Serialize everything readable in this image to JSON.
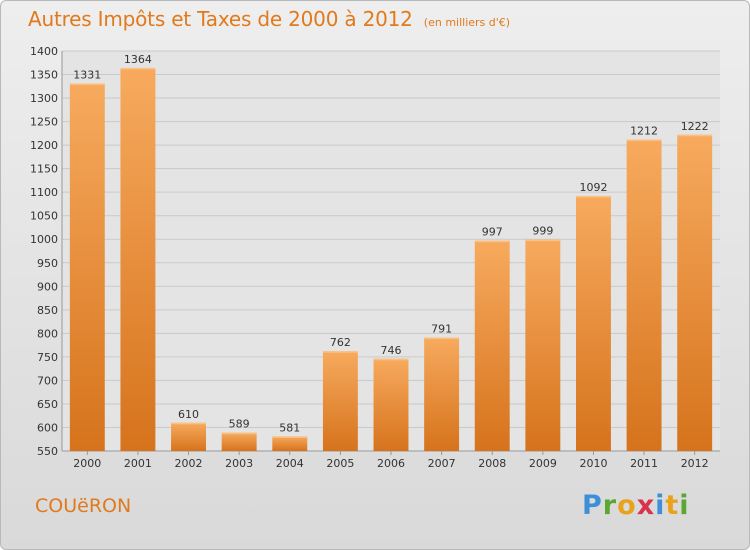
{
  "header": {
    "title": "Autres Impôts et Taxes de 2000 à 2012",
    "unit": "(en milliers d'€)"
  },
  "footer": {
    "city": "COUëRON",
    "logo": "Proxiti"
  },
  "colors": {
    "bar": "#f0913a",
    "bar_light": "#f7aa5e",
    "bar_dark": "#d6731c",
    "accent": "#e07a1c",
    "grid": "#c9c9c9"
  },
  "chart_data": {
    "type": "bar",
    "title": "Autres Impôts et Taxes de 2000 à 2012",
    "subtitle": "(en milliers d'€)",
    "categories": [
      "2000",
      "2001",
      "2002",
      "2003",
      "2004",
      "2005",
      "2006",
      "2007",
      "2008",
      "2009",
      "2010",
      "2011",
      "2012"
    ],
    "values": [
      1331,
      1364,
      610,
      589,
      581,
      762,
      746,
      791,
      997,
      999,
      1092,
      1212,
      1222
    ],
    "data_labels": [
      "1331",
      "1364",
      "610",
      "589",
      "581",
      "762",
      "746",
      "791",
      "997",
      "999",
      "1092",
      "1212",
      "1222"
    ],
    "yticks": [
      "550",
      "600",
      "650",
      "700",
      "750",
      "800",
      "850",
      "900",
      "950",
      "1000",
      "1050",
      "1100",
      "1150",
      "1200",
      "1250",
      "1300",
      "1350",
      "1400"
    ],
    "ylim": [
      550,
      1400
    ],
    "grid": true,
    "legend": "none"
  }
}
